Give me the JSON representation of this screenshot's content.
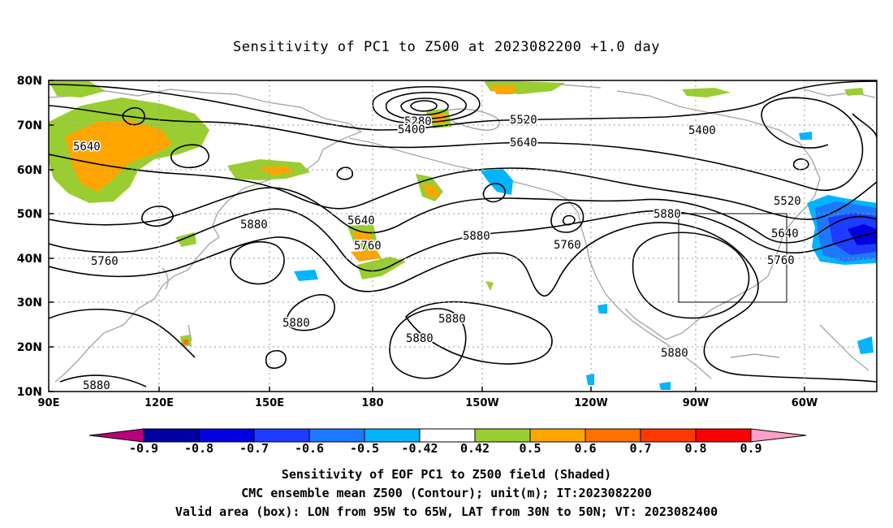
{
  "title": "Sensitivity of PC1 to Z500 at 2023082200 +1.0 day",
  "map": {
    "lat_labels": [
      "80N",
      "70N",
      "60N",
      "50N",
      "40N",
      "30N",
      "20N",
      "10N"
    ],
    "lon_labels": [
      "90E",
      "120E",
      "150E",
      "180",
      "150W",
      "120W",
      "90W",
      "60W"
    ],
    "contour_labels": [
      "5280",
      "5400",
      "5520",
      "5640",
      "5400",
      "5640",
      "5520",
      "5880",
      "5640",
      "5760",
      "5880",
      "5760",
      "5640",
      "5760",
      "5880",
      "5880",
      "5880",
      "5880",
      "5880",
      "5760",
      "5880"
    ],
    "colors": {
      "land": "#a8a8a8",
      "contour": "#000000",
      "grid": "#9a9a9a",
      "box": "#000000"
    },
    "valid_box": {
      "lon_w": "95W",
      "lon_e": "65W",
      "lat_s": "30N",
      "lat_n": "50N"
    }
  },
  "colorbar": {
    "labels": [
      "-0.9",
      "-0.8",
      "-0.7",
      "-0.6",
      "-0.5",
      "-0.42",
      "0.42",
      "0.5",
      "0.6",
      "0.7",
      "0.8",
      "0.9"
    ],
    "colors": [
      "#b8007a",
      "#0000a0",
      "#0000e0",
      "#1e3cff",
      "#1e78ff",
      "#00b4ff",
      "#ffffff",
      "#9acd32",
      "#ffa500",
      "#ff7000",
      "#ff3800",
      "#ff0000",
      "#ff9ec8"
    ]
  },
  "footer": {
    "line1": "Sensitivity of EOF PC1 to Z500 field (Shaded)",
    "line2": "CMC ensemble mean Z500 (Contour); unit(m); IT:2023082200",
    "line3": "Valid area (box): LON from 95W to 65W, LAT from 30N to 50N; VT: 2023082400"
  }
}
